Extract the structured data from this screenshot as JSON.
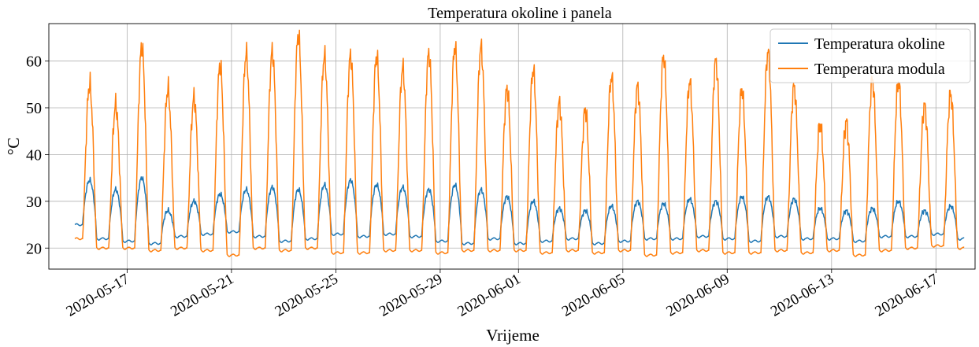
{
  "chart_data": {
    "type": "line",
    "title": "Temperatura okoline i panela",
    "xlabel": "Vrijeme",
    "ylabel": "°C",
    "x_type": "date",
    "xlim": [
      "2020-05-14",
      "2020-06-18 12:00"
    ],
    "ylim": [
      15.5,
      68
    ],
    "grid": true,
    "legend_position": "top-right",
    "x_ticks": [
      "2020-05-17",
      "2020-05-21",
      "2020-05-25",
      "2020-05-29",
      "2020-06-01",
      "2020-06-05",
      "2020-06-09",
      "2020-06-13",
      "2020-06-17"
    ],
    "y_ticks": [
      20,
      30,
      40,
      50,
      60
    ],
    "series": [
      {
        "name": "Temperatura okoline",
        "color": "#1f77b4",
        "daily_peaks": [
          [
            "2020-05-15",
            34.5
          ],
          [
            "2020-05-16",
            32.5
          ],
          [
            "2020-05-17",
            35.0
          ],
          [
            "2020-05-18",
            28.0
          ],
          [
            "2020-05-19",
            30.0
          ],
          [
            "2020-05-20",
            31.5
          ],
          [
            "2020-05-21",
            32.5
          ],
          [
            "2020-05-22",
            33.0
          ],
          [
            "2020-05-23",
            32.5
          ],
          [
            "2020-05-24",
            33.5
          ],
          [
            "2020-05-25",
            34.5
          ],
          [
            "2020-05-26",
            33.5
          ],
          [
            "2020-05-27",
            33.0
          ],
          [
            "2020-05-28",
            32.5
          ],
          [
            "2020-05-29",
            33.5
          ],
          [
            "2020-05-30",
            32.5
          ],
          [
            "2020-05-31",
            31.0
          ],
          [
            "2020-06-01",
            30.0
          ],
          [
            "2020-06-02",
            28.5
          ],
          [
            "2020-06-03",
            28.0
          ],
          [
            "2020-06-04",
            29.0
          ],
          [
            "2020-06-05",
            30.0
          ],
          [
            "2020-06-06",
            29.5
          ],
          [
            "2020-06-07",
            30.5
          ],
          [
            "2020-06-08",
            30.0
          ],
          [
            "2020-06-09",
            31.0
          ],
          [
            "2020-06-10",
            31.0
          ],
          [
            "2020-06-11",
            30.5
          ],
          [
            "2020-06-12",
            28.5
          ],
          [
            "2020-06-13",
            28.0
          ],
          [
            "2020-06-14",
            28.5
          ],
          [
            "2020-06-15",
            30.0
          ],
          [
            "2020-06-16",
            28.0
          ],
          [
            "2020-06-17",
            29.0
          ],
          [
            "2020-06-18",
            29.5
          ]
        ],
        "daily_lows": [
          25.0,
          22.0,
          21.5,
          21.0,
          22.5,
          23.0,
          23.5,
          22.5,
          21.5,
          22.0,
          23.0,
          22.5,
          23.0,
          22.5,
          21.5,
          21.0,
          22.0,
          21.0,
          21.5,
          22.0,
          21.0,
          21.5,
          22.0,
          22.0,
          22.5,
          22.0,
          21.5,
          22.5,
          22.0,
          22.0,
          21.5,
          22.5,
          22.5,
          23.0,
          22.0,
          22.0
        ]
      },
      {
        "name": "Temperatura modula",
        "color": "#ff7f0e",
        "daily_peaks": [
          [
            "2020-05-15",
            55.0
          ],
          [
            "2020-05-16",
            50.5
          ],
          [
            "2020-05-17",
            63.0
          ],
          [
            "2020-05-18",
            54.0
          ],
          [
            "2020-05-19",
            52.0
          ],
          [
            "2020-05-20",
            59.0
          ],
          [
            "2020-05-21",
            61.5
          ],
          [
            "2020-05-22",
            62.0
          ],
          [
            "2020-05-23",
            65.5
          ],
          [
            "2020-05-24",
            61.0
          ],
          [
            "2020-05-25",
            61.0
          ],
          [
            "2020-05-26",
            61.0
          ],
          [
            "2020-05-27",
            58.5
          ],
          [
            "2020-05-28",
            61.5
          ],
          [
            "2020-05-29",
            63.0
          ],
          [
            "2020-05-30",
            63.0
          ],
          [
            "2020-05-31",
            54.0
          ],
          [
            "2020-06-01",
            58.0
          ],
          [
            "2020-06-02",
            51.0
          ],
          [
            "2020-06-03",
            49.5
          ],
          [
            "2020-06-04",
            56.5
          ],
          [
            "2020-06-05",
            54.5
          ],
          [
            "2020-06-06",
            61.0
          ],
          [
            "2020-06-07",
            55.5
          ],
          [
            "2020-06-08",
            60.0
          ],
          [
            "2020-06-09",
            54.0
          ],
          [
            "2020-06-10",
            62.0
          ],
          [
            "2020-06-11",
            54.5
          ],
          [
            "2020-06-12",
            46.5
          ],
          [
            "2020-06-13",
            47.0
          ],
          [
            "2020-06-14",
            56.0
          ],
          [
            "2020-06-15",
            55.5
          ],
          [
            "2020-06-16",
            50.5
          ],
          [
            "2020-06-17",
            53.0
          ],
          [
            "2020-06-18",
            54.0
          ]
        ],
        "daily_lows": [
          22.0,
          20.0,
          20.0,
          19.5,
          20.0,
          19.5,
          18.5,
          20.0,
          19.5,
          20.0,
          19.0,
          19.0,
          19.5,
          19.5,
          19.0,
          19.5,
          19.5,
          19.5,
          19.0,
          19.5,
          19.0,
          19.5,
          18.5,
          19.0,
          19.5,
          19.0,
          19.0,
          19.5,
          19.0,
          19.5,
          18.5,
          19.5,
          20.0,
          20.5,
          20.0,
          20.5
        ]
      }
    ]
  }
}
